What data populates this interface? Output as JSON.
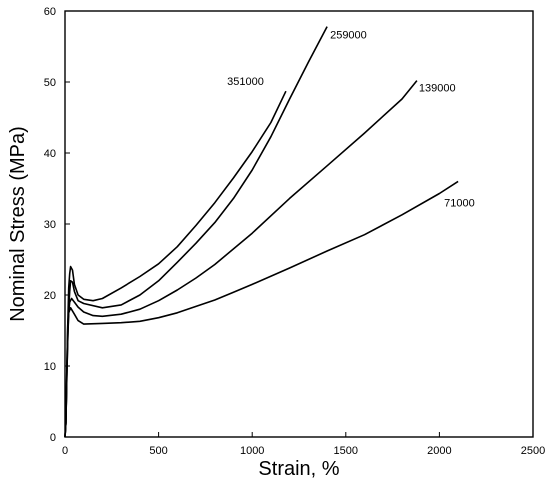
{
  "chart_data": {
    "type": "line",
    "title": "",
    "xlabel": "Strain, %",
    "ylabel": "Nominal Stress (MPa)",
    "xlim": [
      0,
      2500
    ],
    "ylim": [
      0,
      60
    ],
    "x_ticks": [
      "0",
      "500",
      "1000",
      "1500",
      "2000",
      "2500"
    ],
    "y_ticks": [
      "0",
      "10",
      "20",
      "30",
      "40",
      "50",
      "60"
    ],
    "grid": false,
    "legend": "none",
    "series": [
      {
        "name": "351000",
        "points": [
          [
            0,
            0
          ],
          [
            5,
            2
          ],
          [
            10,
            10
          ],
          [
            15,
            16
          ],
          [
            20,
            21
          ],
          [
            25,
            23
          ],
          [
            30,
            24
          ],
          [
            40,
            23.5
          ],
          [
            50,
            21.5
          ],
          [
            70,
            20
          ],
          [
            100,
            19.4
          ],
          [
            150,
            19.2
          ],
          [
            200,
            19.5
          ],
          [
            300,
            21
          ],
          [
            400,
            22.6
          ],
          [
            500,
            24.4
          ],
          [
            600,
            26.8
          ],
          [
            700,
            29.8
          ],
          [
            800,
            33
          ],
          [
            900,
            36.5
          ],
          [
            1000,
            40.2
          ],
          [
            1100,
            44.3
          ],
          [
            1180,
            48.7
          ]
        ]
      },
      {
        "name": "259000",
        "points": [
          [
            0,
            0
          ],
          [
            5,
            2
          ],
          [
            10,
            9
          ],
          [
            15,
            14
          ],
          [
            20,
            18
          ],
          [
            25,
            20.5
          ],
          [
            30,
            22
          ],
          [
            40,
            21.8
          ],
          [
            50,
            20.5
          ],
          [
            70,
            19.2
          ],
          [
            100,
            18.8
          ],
          [
            200,
            18.2
          ],
          [
            300,
            18.6
          ],
          [
            400,
            20
          ],
          [
            500,
            22
          ],
          [
            600,
            24.6
          ],
          [
            700,
            27.3
          ],
          [
            800,
            30.2
          ],
          [
            900,
            33.6
          ],
          [
            1000,
            37.6
          ],
          [
            1100,
            42.3
          ],
          [
            1200,
            47.6
          ],
          [
            1300,
            52.8
          ],
          [
            1400,
            57.8
          ]
        ]
      },
      {
        "name": "139000",
        "points": [
          [
            0,
            0
          ],
          [
            5,
            2
          ],
          [
            10,
            9
          ],
          [
            15,
            14
          ],
          [
            20,
            17.5
          ],
          [
            25,
            19
          ],
          [
            35,
            19.5
          ],
          [
            50,
            19
          ],
          [
            70,
            18.3
          ],
          [
            100,
            17.6
          ],
          [
            150,
            17.1
          ],
          [
            200,
            17
          ],
          [
            300,
            17.3
          ],
          [
            400,
            18
          ],
          [
            500,
            19.2
          ],
          [
            600,
            20.7
          ],
          [
            700,
            22.4
          ],
          [
            800,
            24.3
          ],
          [
            1000,
            28.7
          ],
          [
            1200,
            33.6
          ],
          [
            1400,
            38.2
          ],
          [
            1600,
            42.8
          ],
          [
            1800,
            47.6
          ],
          [
            1880,
            50.2
          ]
        ]
      },
      {
        "name": "71000",
        "points": [
          [
            0,
            0
          ],
          [
            5,
            2
          ],
          [
            10,
            10
          ],
          [
            15,
            16
          ],
          [
            20,
            17.5
          ],
          [
            30,
            18.2
          ],
          [
            50,
            17.3
          ],
          [
            70,
            16.4
          ],
          [
            100,
            15.9
          ],
          [
            200,
            16
          ],
          [
            300,
            16.1
          ],
          [
            400,
            16.3
          ],
          [
            500,
            16.8
          ],
          [
            600,
            17.5
          ],
          [
            700,
            18.4
          ],
          [
            800,
            19.3
          ],
          [
            900,
            20.4
          ],
          [
            1000,
            21.5
          ],
          [
            1200,
            23.8
          ],
          [
            1400,
            26.2
          ],
          [
            1600,
            28.5
          ],
          [
            1800,
            31.3
          ],
          [
            2000,
            34.3
          ],
          [
            2100,
            36
          ]
        ]
      }
    ]
  }
}
